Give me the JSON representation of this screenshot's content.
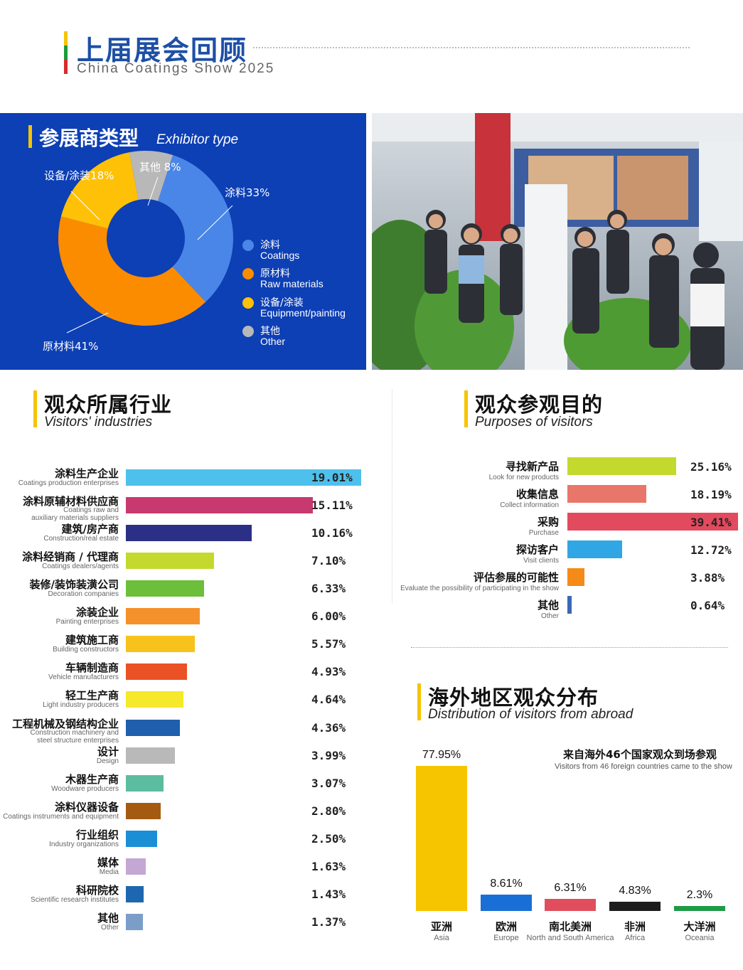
{
  "header": {
    "title": "上届展会回顾",
    "subtitle": "China Coatings Show 2025",
    "bar_colors": [
      "#f5c400",
      "#1d9a3a",
      "#d92b2b"
    ]
  },
  "exhibitor": {
    "title": "参展商类型",
    "title_en": "Exhibitor type",
    "annotations": {
      "coatings": "涂料33%",
      "raw": "原材料41%",
      "equipment": "设备/涂装18%",
      "other": "其他 8%"
    },
    "legend": [
      {
        "zh": "涂料",
        "en": "Coatings",
        "color": "#4a86e8"
      },
      {
        "zh": "原材料",
        "en": "Raw materials",
        "color": "#fb8c00"
      },
      {
        "zh": "设备/涂装",
        "en": "Equipment/painting",
        "color": "#ffc107"
      },
      {
        "zh": "其他",
        "en": "Other",
        "color": "#b8b8b8"
      }
    ]
  },
  "industries": {
    "title": "观众所属行业",
    "title_en": "Visitors' industries"
  },
  "purposes": {
    "title": "观众参观目的",
    "title_en": "Purposes of visitors"
  },
  "abroad": {
    "title": "海外地区观众分布",
    "title_en": "Distribution of visitors from abroad",
    "note": "来自海外46个国家观众到场参观",
    "note_en": "Visitors from 46 foreign countries came to the show"
  },
  "chart_data": [
    {
      "type": "pie",
      "title": "参展商类型 Exhibitor type",
      "categories": [
        "涂料",
        "原材料",
        "设备/涂装",
        "其他"
      ],
      "categories_en": [
        "Coatings",
        "Raw materials",
        "Equipment/painting",
        "Other"
      ],
      "values": [
        33,
        41,
        18,
        8
      ],
      "colors": [
        "#4a86e8",
        "#fb8c00",
        "#ffc107",
        "#b8b8b8"
      ],
      "legend": "right"
    },
    {
      "type": "bar",
      "orientation": "horizontal",
      "title": "观众所属行业 Visitors' industries",
      "categories": [
        "涂料生产企业",
        "涂料原辅材料供应商",
        "建筑/房产商",
        "涂料经销商 / 代理商",
        "装修/装饰装潢公司",
        "涂装企业",
        "建筑施工商",
        "车辆制造商",
        "轻工生产商",
        "工程机械及钢结构企业",
        "设计",
        "木器生产商",
        "涂料仪器设备",
        "行业组织",
        "媒体",
        "科研院校",
        "其他"
      ],
      "categories_en": [
        "Coatings production enterprises",
        "Coatings raw and auxiliary materials suppliers",
        "Construction/real estate",
        "Coatings dealers/agents",
        "Decoration companies",
        "Painting enterprises",
        "Building constructors",
        "Vehicle manufacturers",
        "Light industry producers",
        "Construction machinery and steel structure enterprises",
        "Design",
        "Woodware producers",
        "Coatings instruments and equipment",
        "Industry organizations",
        "Media",
        "Scientific research institutes",
        "Other"
      ],
      "values": [
        19.01,
        15.11,
        10.16,
        7.1,
        6.33,
        6.0,
        5.57,
        4.93,
        4.64,
        4.36,
        3.99,
        3.07,
        2.8,
        2.5,
        1.63,
        1.43,
        1.37
      ],
      "labels": [
        "19.01%",
        "15.11%",
        "10.16%",
        "7.10%",
        "6.33%",
        "6.00%",
        "5.57%",
        "4.93%",
        "4.64%",
        "4.36%",
        "3.99%",
        "3.07%",
        "2.80%",
        "2.50%",
        "1.63%",
        "1.43%",
        "1.37%"
      ],
      "colors": [
        "#4ec0ec",
        "#c8396f",
        "#2b2f86",
        "#c3d92e",
        "#6cbe3b",
        "#f5912a",
        "#f7c21c",
        "#ea5125",
        "#f6e82a",
        "#1f5fad",
        "#b9b9b9",
        "#5cbca0",
        "#a55a12",
        "#1a8fd6",
        "#c3a7d4",
        "#1d67b0",
        "#7b9ec9"
      ]
    },
    {
      "type": "bar",
      "orientation": "horizontal",
      "title": "观众参观目的 Purposes of visitors",
      "categories": [
        "寻找新产品",
        "收集信息",
        "采购",
        "探访客户",
        "评估参展的可能性",
        "其他"
      ],
      "categories_en": [
        "Look for new products",
        "Collect information",
        "Purchase",
        "Visit clients",
        "Evaluate the possibility of participating in the show",
        "Other"
      ],
      "values": [
        25.16,
        18.19,
        39.41,
        12.72,
        3.88,
        0.64
      ],
      "labels": [
        "25.16%",
        "18.19%",
        "39.41%",
        "12.72%",
        "3.88%",
        "0.64%"
      ],
      "colors": [
        "#c3d92e",
        "#e9766a",
        "#e24a5e",
        "#31a6e5",
        "#f58a18",
        "#3a68b5"
      ]
    },
    {
      "type": "bar",
      "title": "海外地区观众分布 Distribution of visitors from abroad",
      "categories": [
        "亚洲",
        "欧洲",
        "南北美洲",
        "非洲",
        "大洋洲"
      ],
      "categories_en": [
        "Asia",
        "Europe",
        "North and South America",
        "Africa",
        "Oceania"
      ],
      "values": [
        77.95,
        8.61,
        6.31,
        4.83,
        2.3
      ],
      "labels": [
        "77.95%",
        "8.61%",
        "6.31%",
        "4.83%",
        "2.3%"
      ],
      "colors": [
        "#f7c400",
        "#1a6fd6",
        "#e04e5e",
        "#1d1d1d",
        "#1f9a46"
      ]
    }
  ]
}
